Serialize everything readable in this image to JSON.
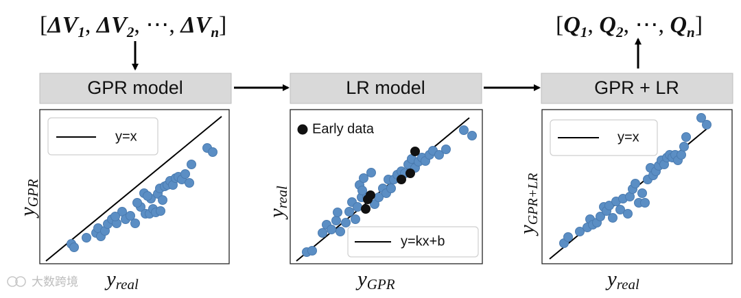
{
  "input_vector": {
    "open": "[",
    "d1": "ΔV",
    "s1": "1",
    "d2": "ΔV",
    "s2": "2",
    "dots": "⋯",
    "dn": "ΔV",
    "sn": "n",
    "close": "]"
  },
  "output_vector": {
    "open": "[",
    "q1": "Q",
    "s1": "1",
    "q2": "Q",
    "s2": "2",
    "dots": "⋯",
    "qn": "Q",
    "sn": "n",
    "close": "]"
  },
  "boxes": {
    "gpr": "GPR model",
    "lr": "LR model",
    "combo": "GPR + LR"
  },
  "plot1": {
    "legend": "y=x",
    "xlabel_main": "y",
    "xlabel_sub": "real",
    "ylabel_main": "y",
    "ylabel_sub": "GPR"
  },
  "plot2": {
    "legend_points": "Early data",
    "legend_line": "y=kx+b",
    "xlabel_main": "y",
    "xlabel_sub": "GPR",
    "ylabel_main": "y",
    "ylabel_sub": "real"
  },
  "plot3": {
    "legend": "y=x",
    "xlabel_main": "y",
    "xlabel_sub": "real",
    "ylabel_main": "y",
    "ylabel_sub": "GPR+LR"
  },
  "watermark": "大数跨境",
  "colors": {
    "point": "#5b8ec4",
    "point_edge": "#4a7bb0",
    "early": "#111111",
    "box": "#d9d9d9"
  }
}
